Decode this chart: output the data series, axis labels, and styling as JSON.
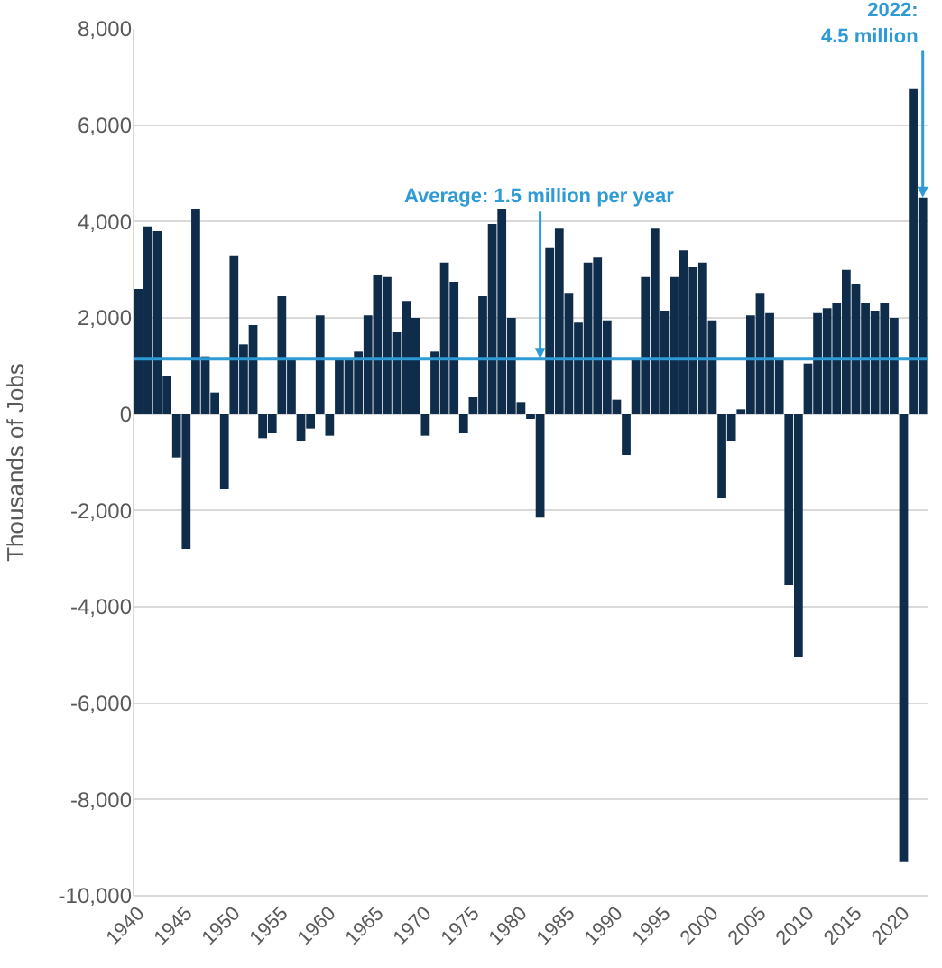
{
  "chart_data": {
    "type": "bar",
    "ylabel": "Thousands of Jobs",
    "x": [
      1940,
      1941,
      1942,
      1943,
      1944,
      1945,
      1946,
      1947,
      1948,
      1949,
      1950,
      1951,
      1952,
      1953,
      1954,
      1955,
      1956,
      1957,
      1958,
      1959,
      1960,
      1961,
      1962,
      1963,
      1964,
      1965,
      1966,
      1967,
      1968,
      1969,
      1970,
      1971,
      1972,
      1973,
      1974,
      1975,
      1976,
      1977,
      1978,
      1979,
      1980,
      1981,
      1982,
      1983,
      1984,
      1985,
      1986,
      1987,
      1988,
      1989,
      1990,
      1991,
      1992,
      1993,
      1994,
      1995,
      1996,
      1997,
      1998,
      1999,
      2000,
      2001,
      2002,
      2003,
      2004,
      2005,
      2006,
      2007,
      2008,
      2009,
      2010,
      2011,
      2012,
      2013,
      2014,
      2015,
      2016,
      2017,
      2018,
      2019,
      2020,
      2021,
      2022
    ],
    "values": [
      2600,
      3900,
      3800,
      800,
      -900,
      -2800,
      4250,
      1200,
      450,
      -1550,
      3300,
      1450,
      1850,
      -500,
      -400,
      2450,
      1150,
      -550,
      -300,
      2050,
      -450,
      1150,
      1150,
      1300,
      2050,
      2900,
      2850,
      1700,
      2350,
      2000,
      -450,
      1300,
      3150,
      2750,
      -400,
      350,
      2450,
      3950,
      4250,
      2000,
      250,
      -100,
      -2150,
      3450,
      3850,
      2500,
      1900,
      3150,
      3250,
      1950,
      300,
      -850,
      1150,
      2850,
      3850,
      2150,
      2850,
      3400,
      3050,
      3150,
      1950,
      -1750,
      -550,
      100,
      2050,
      2500,
      2100,
      1150,
      -3550,
      -5050,
      1050,
      2100,
      2200,
      2300,
      3000,
      2700,
      2300,
      2150,
      2300,
      2000,
      -9300,
      6750,
      4500
    ],
    "color": "#0f2d4a",
    "xlim": [
      1939.5,
      2022.5
    ],
    "xticks": [
      1940,
      1945,
      1950,
      1955,
      1960,
      1965,
      1970,
      1975,
      1980,
      1985,
      1990,
      1995,
      2000,
      2005,
      2010,
      2015,
      2020
    ],
    "ylim": [
      -10000,
      8000
    ],
    "yticks": [
      {
        "value": -10000,
        "label": "-10,000"
      },
      {
        "value": -8000,
        "label": "-8,000"
      },
      {
        "value": -6000,
        "label": "-6,000"
      },
      {
        "value": -4000,
        "label": "-4,000"
      },
      {
        "value": -2000,
        "label": "-2,000"
      },
      0,
      {
        "value": 2000,
        "label": "2,000"
      },
      {
        "value": 4000,
        "label": "4,000"
      },
      {
        "value": 6000,
        "label": "6,000"
      },
      {
        "value": 8000,
        "label": "8,000"
      }
    ],
    "grid": "y",
    "ref_lines": [
      {
        "axis": "y",
        "value": 1150,
        "color": "#2e9bd6"
      }
    ],
    "annotations": [
      {
        "text": "Average: 1.5 million per year",
        "x": 1982,
        "y": 1150
      },
      {
        "text": "2022:\n4.5 million",
        "x": 2022,
        "y": 4500
      }
    ]
  }
}
